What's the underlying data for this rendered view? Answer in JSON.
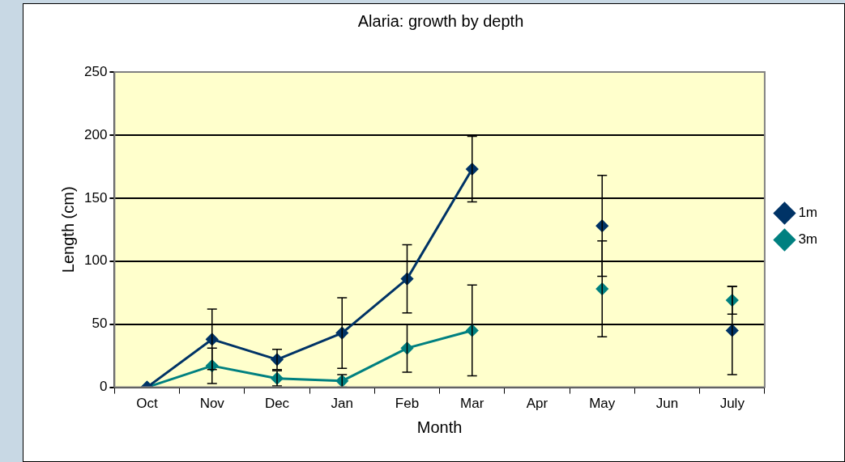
{
  "chart_data": {
    "type": "line",
    "title": "Alaria: growth by depth",
    "xlabel": "Month",
    "ylabel": "Length (cm)",
    "categories": [
      "Oct",
      "Nov",
      "Dec",
      "Jan",
      "Feb",
      "Mar",
      "Apr",
      "May",
      "Jun",
      "July"
    ],
    "series": [
      {
        "name": "1m",
        "color": "#003366",
        "values": [
          0,
          38,
          22,
          43,
          86,
          173,
          null,
          128,
          null,
          45
        ],
        "errors": [
          null,
          24,
          8,
          28,
          27,
          26,
          null,
          40,
          null,
          35
        ]
      },
      {
        "name": "3m",
        "color": "#008080",
        "values": [
          0,
          17,
          7,
          5,
          31,
          45,
          null,
          78,
          null,
          69
        ],
        "errors": [
          null,
          14,
          6,
          5,
          19,
          36,
          null,
          38,
          null,
          11
        ]
      }
    ],
    "ylim": [
      0,
      250
    ],
    "yticks": [
      0,
      50,
      100,
      150,
      200,
      250
    ],
    "grid": "y",
    "legend": "right",
    "marker": "diamond",
    "line_style": "solid"
  }
}
